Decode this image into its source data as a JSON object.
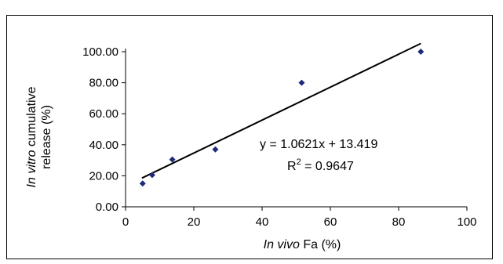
{
  "chart_data": {
    "type": "scatter",
    "title": "",
    "xlabel_italic": "In vivo",
    "xlabel_rest": " Fa (%)",
    "ylabel_line1_italic": "In vitro",
    "ylabel_line1_rest": " cumulative",
    "ylabel_line2": "release (%)",
    "xlim": [
      0,
      100
    ],
    "ylim": [
      0,
      100
    ],
    "x_ticks": [
      0,
      20,
      40,
      60,
      80,
      100
    ],
    "x_tick_labels": [
      "0",
      "20",
      "40",
      "60",
      "80",
      "100"
    ],
    "y_ticks": [
      0,
      20,
      40,
      60,
      80,
      100
    ],
    "y_tick_labels": [
      "0.00",
      "20.00",
      "40.00",
      "60.00",
      "80.00",
      "100.00"
    ],
    "grid": false,
    "series": [
      {
        "marker": "diamond",
        "color": "#1f2a7a",
        "points": [
          {
            "x": 5,
            "y": 15
          },
          {
            "x": 7.8,
            "y": 20.5
          },
          {
            "x": 13.7,
            "y": 30.5
          },
          {
            "x": 26.3,
            "y": 37
          },
          {
            "x": 51.6,
            "y": 80
          },
          {
            "x": 86.5,
            "y": 100
          }
        ]
      }
    ],
    "trendline": {
      "slope": 1.0621,
      "intercept": 13.419,
      "x_range": [
        4.8,
        86.5
      ],
      "color": "#000000"
    },
    "annotation": {
      "equation": "y  = 1.0621x + 13.419",
      "r2_prefix": "R",
      "r2_sup": "2",
      "r2_rest": " = 0.9647"
    }
  }
}
